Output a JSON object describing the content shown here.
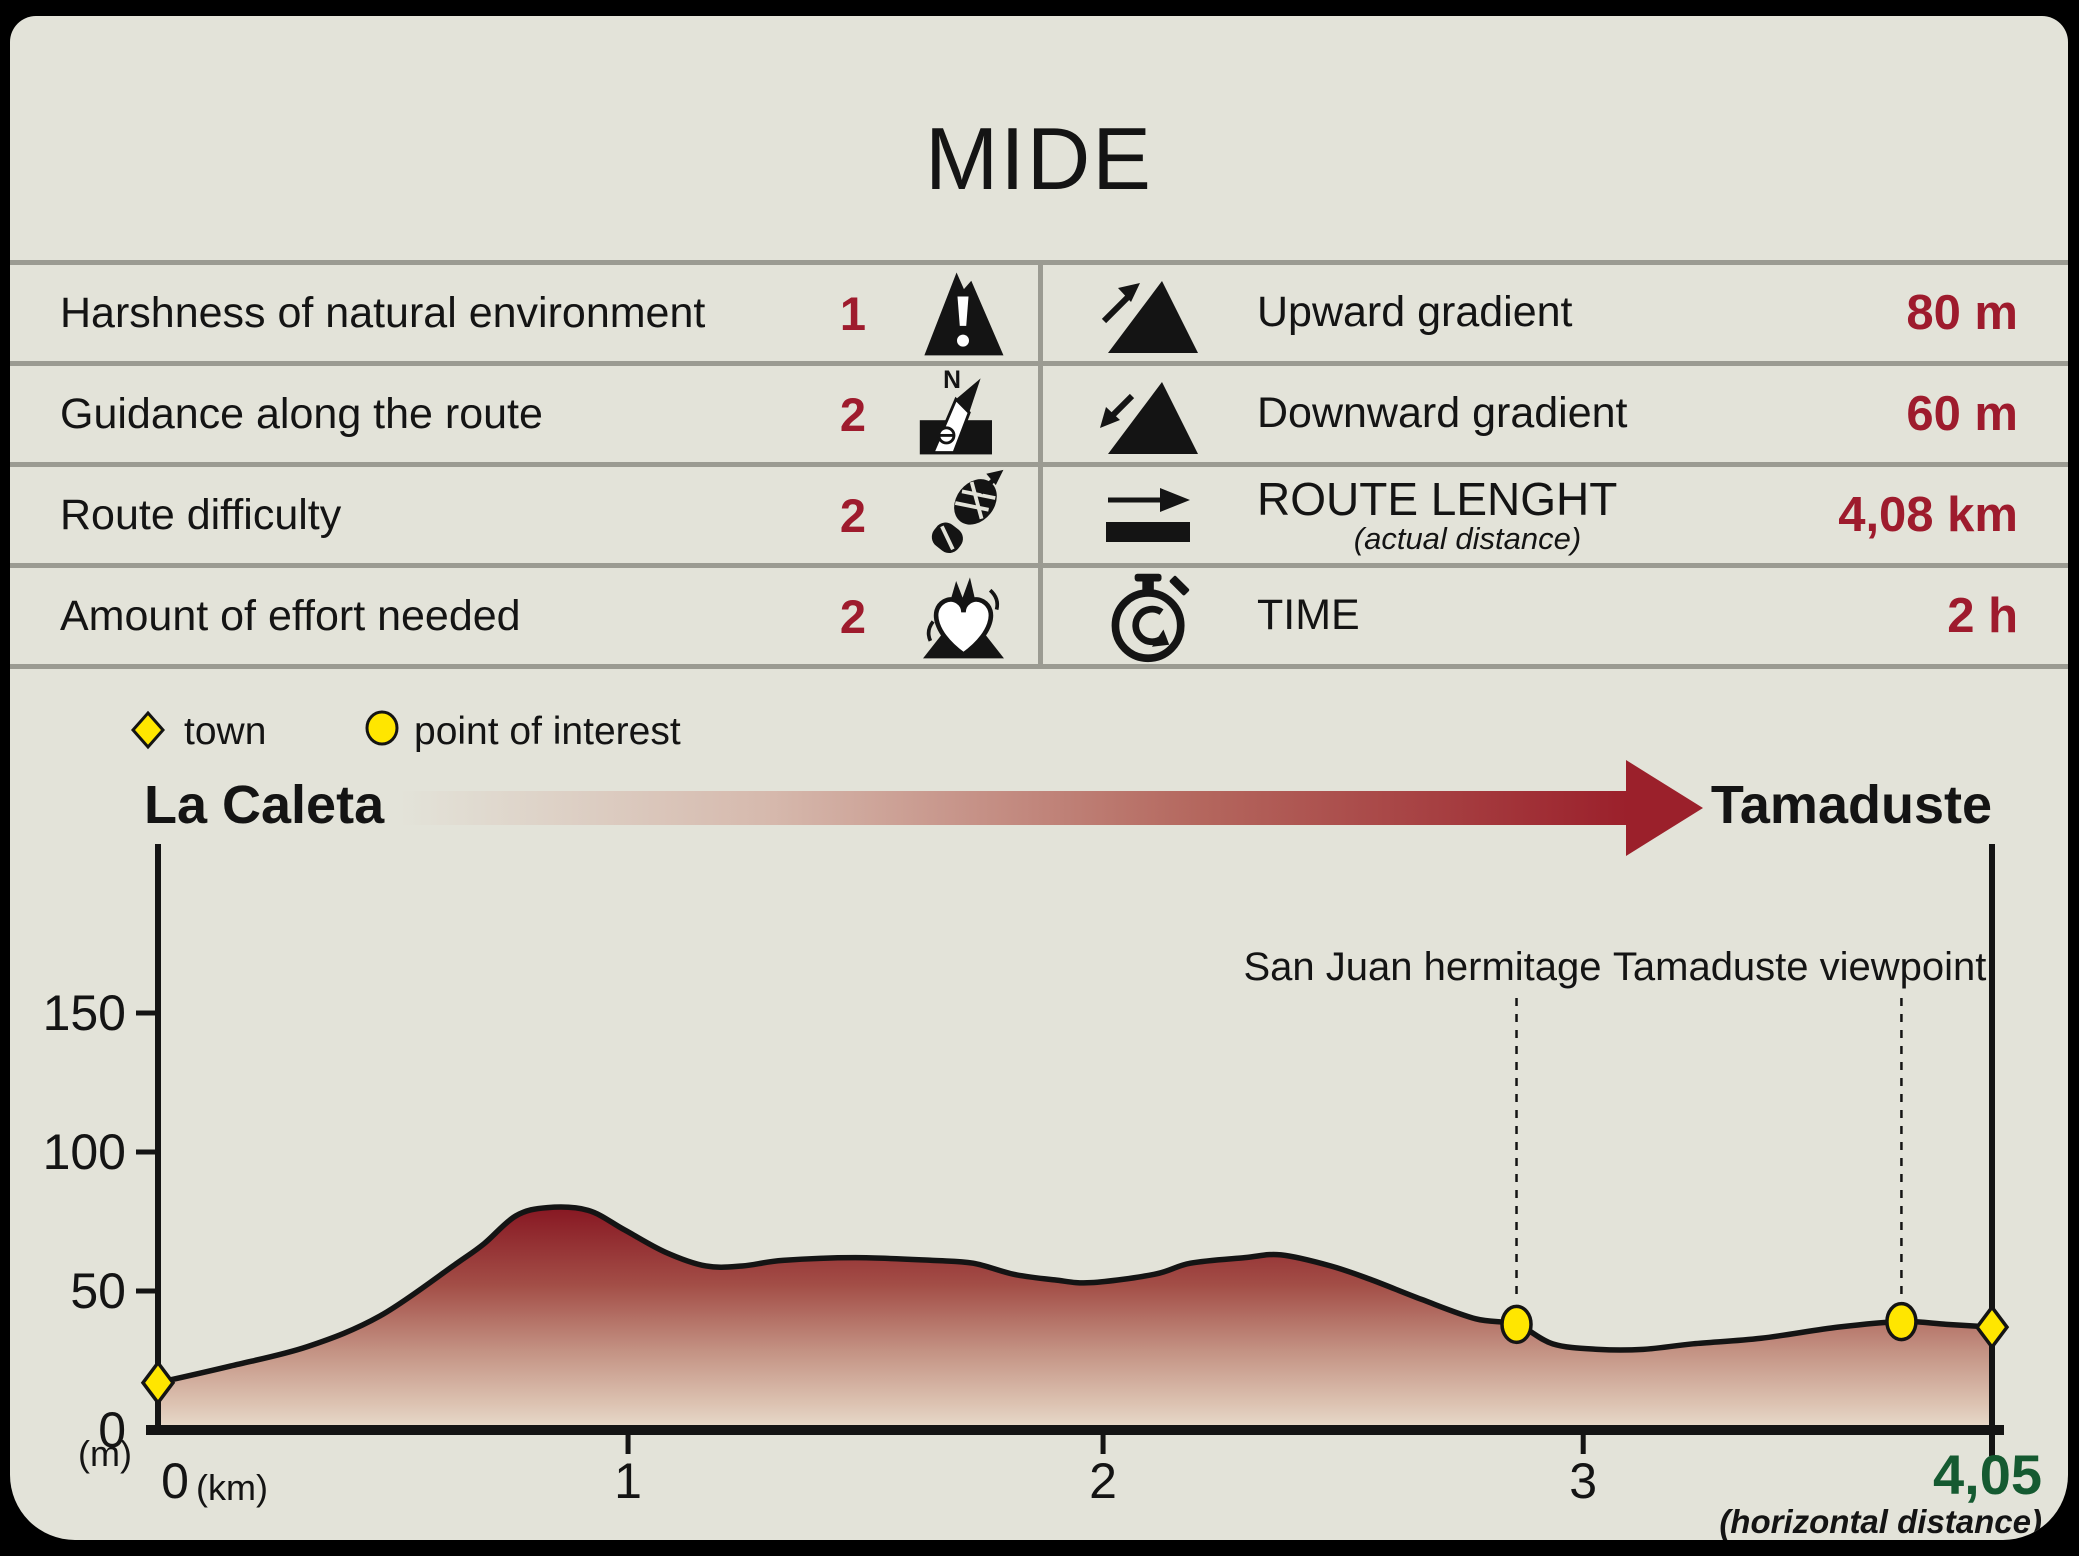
{
  "title": "MIDE",
  "colors": {
    "card_background": "#e3e3d9",
    "separator_gray": "#9b9b92",
    "accent_red": "#9e1b2d",
    "accent_green": "#155a31",
    "marker_yellow": "#ffe600",
    "arrow_red": "#9b202b",
    "profile_dark": "#871722",
    "profile_light": "#e6d8c8",
    "ink_black": "#141414"
  },
  "table": {
    "left_rows": [
      {
        "label": "Harshness of natural environment",
        "value": "1",
        "icon": "mountain-warning-icon"
      },
      {
        "label": "Guidance along the route",
        "value": "2",
        "icon": "compass-map-icon"
      },
      {
        "label": "Route difficulty",
        "value": "2",
        "icon": "boot-print-icon"
      },
      {
        "label": "Amount of effort needed",
        "value": "2",
        "icon": "beating-heart-icon"
      }
    ],
    "right_rows": [
      {
        "label": "Upward gradient",
        "value": "80 m",
        "icon": "upward-slope-icon"
      },
      {
        "label": "Downward gradient",
        "value": "60 m",
        "icon": "downward-slope-icon"
      },
      {
        "label": "ROUTE LENGHT",
        "sublabel": "(actual distance)",
        "value": "4,08 km",
        "icon": "route-length-arrow-icon"
      },
      {
        "label": "TIME",
        "value": "2 h",
        "icon": "stopwatch-icon"
      }
    ]
  },
  "legend": {
    "items": [
      {
        "shape": "diamond",
        "label": "town"
      },
      {
        "shape": "circle",
        "label": "point of interest"
      }
    ]
  },
  "route": {
    "start": "La Caleta",
    "end": "Tamaduste"
  },
  "chart_data": {
    "type": "area",
    "x_unit_label": "(km)",
    "y_unit_label": "(m)",
    "footnote": "(horizontal distance)",
    "x_max": 4.05,
    "x_ticks": [
      0,
      1,
      2,
      3
    ],
    "x_end_label": "4,05",
    "y_ticks": [
      0,
      50,
      100,
      150
    ],
    "ylim": [
      0,
      175
    ],
    "grid": false,
    "profile_km_m": [
      [
        0.0,
        17
      ],
      [
        0.16,
        23
      ],
      [
        0.33,
        30
      ],
      [
        0.49,
        41
      ],
      [
        0.66,
        60
      ],
      [
        0.72,
        67
      ],
      [
        0.79,
        77
      ],
      [
        0.86,
        80
      ],
      [
        0.95,
        79
      ],
      [
        1.03,
        72
      ],
      [
        1.12,
        64
      ],
      [
        1.21,
        59
      ],
      [
        1.29,
        59
      ],
      [
        1.38,
        61
      ],
      [
        1.54,
        62
      ],
      [
        1.71,
        61
      ],
      [
        1.8,
        60
      ],
      [
        1.89,
        56
      ],
      [
        1.98,
        54
      ],
      [
        2.06,
        53
      ],
      [
        2.2,
        56
      ],
      [
        2.28,
        60
      ],
      [
        2.4,
        62
      ],
      [
        2.48,
        63
      ],
      [
        2.59,
        59
      ],
      [
        2.68,
        54
      ],
      [
        2.79,
        47
      ],
      [
        2.91,
        40
      ],
      [
        3.0,
        38
      ],
      [
        3.08,
        31
      ],
      [
        3.18,
        29
      ],
      [
        3.28,
        29
      ],
      [
        3.39,
        31
      ],
      [
        3.54,
        33
      ],
      [
        3.71,
        37
      ],
      [
        3.85,
        39
      ],
      [
        3.95,
        38
      ],
      [
        4.05,
        37
      ]
    ],
    "markers": [
      {
        "shape": "diamond",
        "kind": "town",
        "label": "La Caleta",
        "x_km": 0,
        "elevation_m": 17
      },
      {
        "shape": "circle",
        "kind": "point-of-interest",
        "label": "San Juan hermitage",
        "x_km": 3.0,
        "elevation_m": 38
      },
      {
        "shape": "circle",
        "kind": "point-of-interest",
        "label": "Tamaduste viewpoint",
        "x_km": 3.85,
        "elevation_m": 39
      },
      {
        "shape": "diamond",
        "kind": "town",
        "label": "Tamaduste",
        "x_km": 4.05,
        "elevation_m": 37
      }
    ]
  }
}
